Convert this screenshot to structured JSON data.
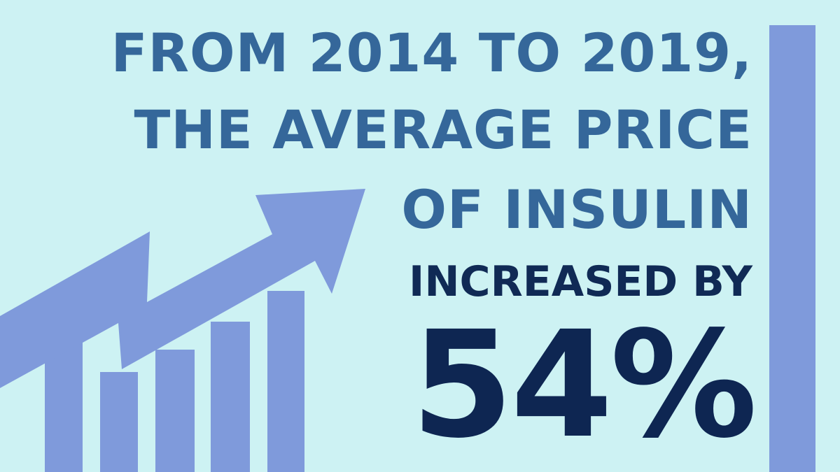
{
  "headline": {
    "line1": "FROM 2014 TO 2019,",
    "line2": "THE AVERAGE PRICE",
    "line3": "OF INSULIN",
    "line4": "INCREASED BY",
    "stat": "54%"
  },
  "icons": {
    "graphic": "rising-bar-chart-with-arrow-icon",
    "decoration": "vertical-accent-bar"
  },
  "colors": {
    "background": "#cdf2f3",
    "graphic": "#7f9adb",
    "headline": "#35679a",
    "emphasis": "#0e2652"
  }
}
